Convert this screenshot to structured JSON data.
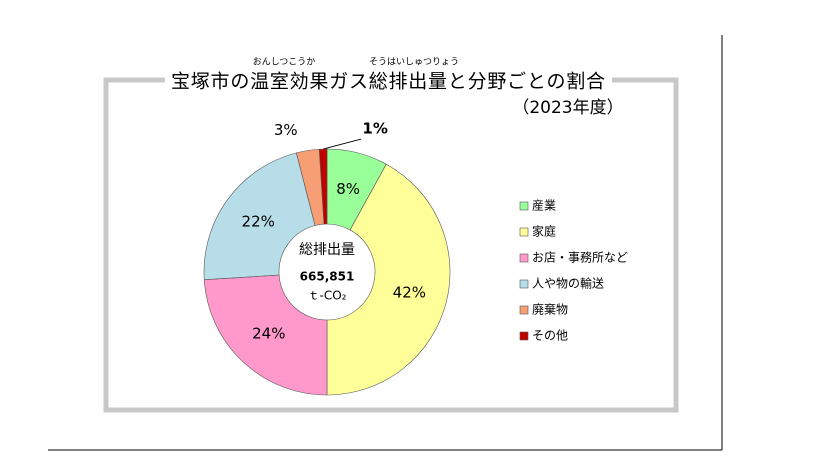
{
  "chart_data": {
    "type": "donut",
    "title": "宝塚市の温室効果ガス総排出量と分野ごとの割合",
    "title_ruby": [
      {
        "text": "おんしつこうか",
        "over": "温室効果"
      },
      {
        "text": "そうはいしゅつりょう",
        "over": "総排出量"
      }
    ],
    "subtitle": "（2023年度）",
    "center_label": "総排出量",
    "center_value": "665,851",
    "center_unit": "ｔ-CO₂",
    "categories": [
      "産業",
      "家庭",
      "お店・事務所など",
      "人や物の輸送",
      "廃棄物",
      "その他"
    ],
    "values": [
      8,
      42,
      24,
      22,
      3,
      1
    ],
    "value_labels": [
      "8%",
      "42%",
      "24%",
      "22%",
      "3%",
      "1%"
    ],
    "colors": [
      "#99ff99",
      "#ffff99",
      "#ff99cc",
      "#b7dde8",
      "#f79e74",
      "#c00000"
    ],
    "legend": "right"
  }
}
